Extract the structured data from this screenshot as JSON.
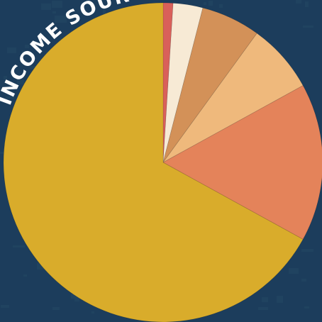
{
  "chart_data": {
    "type": "pie",
    "title": "INCOME SOURCES",
    "values": [
      1,
      3,
      6,
      7,
      16,
      67
    ],
    "colors": [
      "#d9605a",
      "#f7ead5",
      "#d39158",
      "#efb97c",
      "#e4835a",
      "#d9ac2b"
    ],
    "start_angle_deg": 0,
    "direction": "clockwise",
    "legend": "none"
  },
  "colors": {
    "background": "#1c3d5c",
    "background_texture": "#2a5068",
    "title_text": "#ffffff"
  }
}
